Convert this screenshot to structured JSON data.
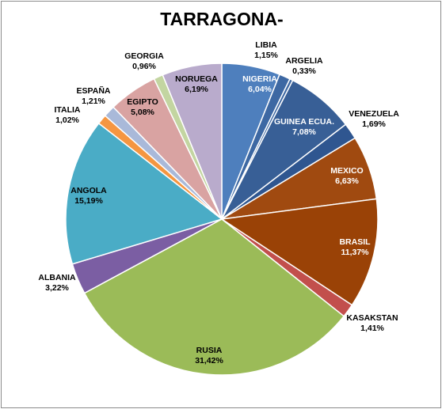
{
  "chart_data": {
    "type": "pie",
    "title": "TARRAGONA-",
    "slices": [
      {
        "label": "NIGERIA",
        "value_text": "6,04%",
        "value": 6.04,
        "color": "#4e7fbd",
        "label_color": "#ffffff"
      },
      {
        "label": "LIBIA",
        "value_text": "1,15%",
        "value": 1.15,
        "color": "#3d68a3",
        "label_color": "#000000"
      },
      {
        "label": "ARGELIA",
        "value_text": "0,33%",
        "value": 0.33,
        "color": "#3d68a3",
        "label_color": "#000000"
      },
      {
        "label": "GUINEA ECUA.",
        "value_text": "7,08%",
        "value": 7.08,
        "color": "#385f96",
        "label_color": "#ffffff"
      },
      {
        "label": "VENEZUELA",
        "value_text": "1,69%",
        "value": 1.69,
        "color": "#2f5690",
        "label_color": "#000000"
      },
      {
        "label": "MEXICO",
        "value_text": "6,63%",
        "value": 6.63,
        "color": "#a04a10",
        "label_color": "#ffffff"
      },
      {
        "label": "BRASIL",
        "value_text": "11,37%",
        "value": 11.37,
        "color": "#9a4206",
        "label_color": "#ffffff"
      },
      {
        "label": "KASAKSTAN",
        "value_text": "1,41%",
        "value": 1.41,
        "color": "#c24f4c",
        "label_color": "#000000"
      },
      {
        "label": "RUSIA",
        "value_text": "31,42%",
        "value": 31.42,
        "color": "#9bbb58",
        "label_color": "#000000"
      },
      {
        "label": "ALBANIA",
        "value_text": "3,22%",
        "value": 3.22,
        "color": "#7b5ea3",
        "label_color": "#000000"
      },
      {
        "label": "ANGOLA",
        "value_text": "15,19%",
        "value": 15.19,
        "color": "#4aacc6",
        "label_color": "#000000"
      },
      {
        "label": "ITALIA",
        "value_text": "1,02%",
        "value": 1.02,
        "color": "#f59641",
        "label_color": "#000000"
      },
      {
        "label": "ESPAÑA",
        "value_text": "1,21%",
        "value": 1.21,
        "color": "#a9b9d9",
        "label_color": "#000000"
      },
      {
        "label": "EGIPTO",
        "value_text": "5,08%",
        "value": 5.08,
        "color": "#d9a3a2",
        "label_color": "#000000"
      },
      {
        "label": "GEORGIA",
        "value_text": "0,96%",
        "value": 0.96,
        "color": "#c3d5a1",
        "label_color": "#000000"
      },
      {
        "label": "NORUEGA",
        "value_text": "6,19%",
        "value": 6.19,
        "color": "#b9abcc",
        "label_color": "#000000"
      }
    ]
  }
}
